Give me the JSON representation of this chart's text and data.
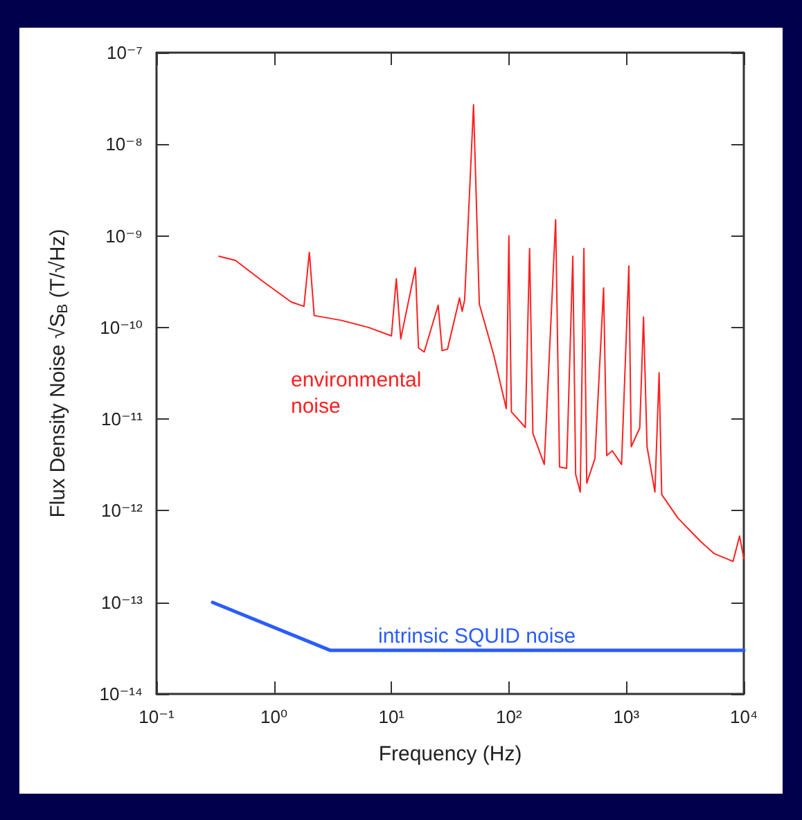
{
  "chart_data": {
    "type": "line",
    "xlabel": "Frequency (Hz)",
    "ylabel": "Flux Density Noise √S$_{B}$ (T/√Hz)",
    "log": "xy",
    "grid": false,
    "marker": "none",
    "line_style": "solid",
    "xlim": [
      0.1,
      10000
    ],
    "ylim": [
      1e-14,
      1e-07
    ],
    "xticks": [
      {
        "value": 0.1,
        "label": "10⁻¹"
      },
      {
        "value": 1,
        "label": "10⁰"
      },
      {
        "value": 10,
        "label": "10¹"
      },
      {
        "value": 100,
        "label": "10²"
      },
      {
        "value": 1000,
        "label": "10³"
      },
      {
        "value": 10000,
        "label": "10⁴"
      }
    ],
    "yticks": [
      {
        "value": 1e-14,
        "label": "10⁻¹⁴"
      },
      {
        "value": 1e-13,
        "label": "10⁻¹³"
      },
      {
        "value": 1e-12,
        "label": "10⁻¹²"
      },
      {
        "value": 1e-11,
        "label": "10⁻¹¹"
      },
      {
        "value": 1e-10,
        "label": "10⁻¹⁰"
      },
      {
        "value": 1e-09,
        "label": "10⁻⁹"
      },
      {
        "value": 1e-08,
        "label": "10⁻⁸"
      },
      {
        "value": 1e-07,
        "label": "10⁻⁷"
      }
    ],
    "series": [
      {
        "name": "environmental noise",
        "color": "#ff2020",
        "x": [
          0.34,
          0.47,
          0.8,
          1.4,
          1.8,
          2,
          2.2,
          3.7,
          6.4,
          10,
          11,
          12,
          16,
          17,
          19,
          25,
          27,
          30,
          38,
          40,
          42,
          50,
          56,
          74,
          95,
          100,
          105,
          138,
          150,
          160,
          200,
          250,
          270,
          310,
          350,
          370,
          405,
          435,
          460,
          540,
          640,
          680,
          760,
          910,
          1050,
          1100,
          1300,
          1400,
          1500,
          1750,
          1900,
          2000,
          2750,
          4300,
          5600,
          8100,
          9200,
          10000
        ],
        "values": [
          6e-10,
          5.4e-10,
          3.2e-10,
          1.9e-10,
          1.7e-10,
          6.6e-10,
          1.35e-10,
          1.2e-10,
          1e-10,
          8.1e-11,
          3.4e-10,
          7.5e-11,
          4.5e-10,
          6e-11,
          5.4e-11,
          1.75e-10,
          5.6e-11,
          5.8e-11,
          2.1e-10,
          1.5e-10,
          2e-10,
          2.7e-08,
          1.8e-10,
          5.1e-11,
          1.3e-11,
          1e-09,
          1.2e-11,
          8.1e-12,
          7.3e-10,
          7e-12,
          3.2e-12,
          1.5e-09,
          3e-12,
          2.9e-12,
          6e-10,
          2.5e-12,
          1.6e-12,
          7.3e-10,
          2e-12,
          3.7e-12,
          2.7e-10,
          4e-12,
          4.5e-12,
          3.2e-12,
          4.7e-10,
          5e-12,
          8e-12,
          1.3e-10,
          5e-12,
          1.6e-12,
          3.2e-11,
          1.5e-12,
          8.3e-13,
          4.6e-13,
          3.4e-13,
          2.8e-13,
          5.3e-13,
          3e-13
        ]
      },
      {
        "name": "intrinsic SQUID noise",
        "color": "#2a5cff",
        "x": [
          0.3,
          3,
          10000
        ],
        "values": [
          1e-13,
          3e-14,
          3e-14
        ]
      }
    ]
  }
}
